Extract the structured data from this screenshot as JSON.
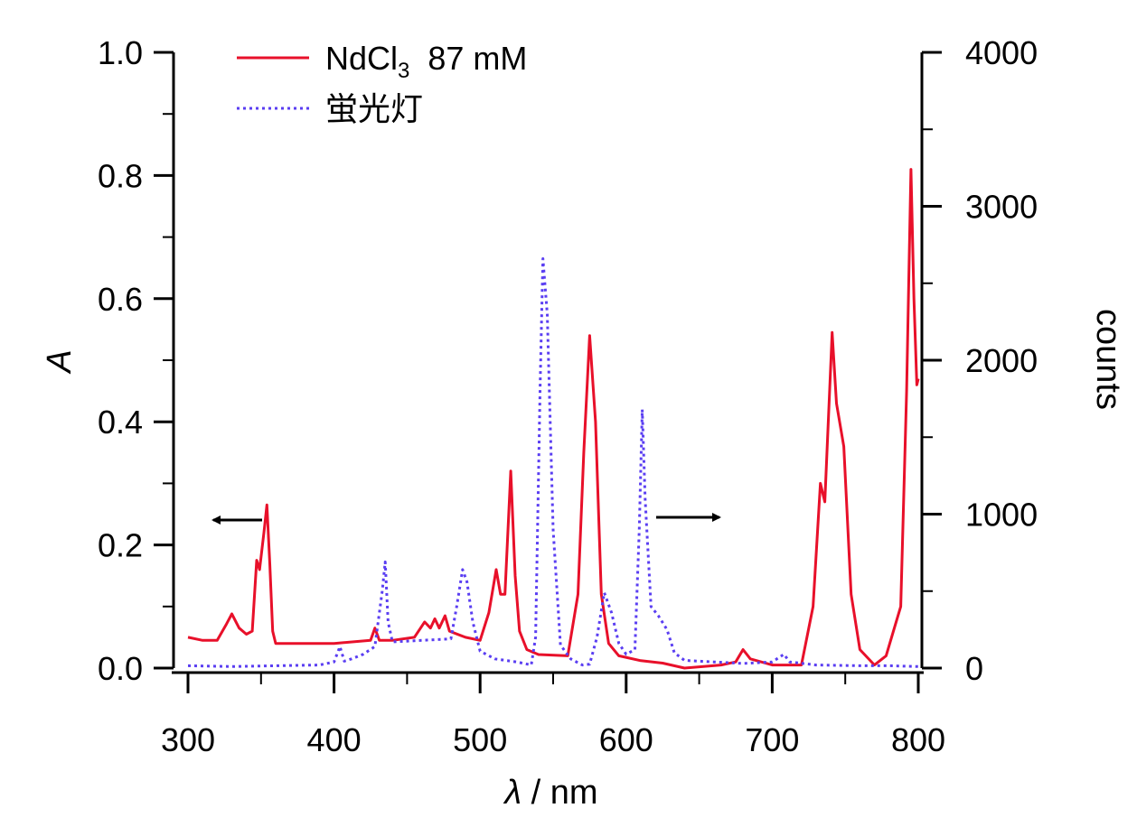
{
  "chart_data": {
    "type": "line",
    "xlabel_symbol": "λ",
    "xlabel_unit": " / nm",
    "ylabel_left": "A",
    "ylabel_right": "counts",
    "xlim": [
      300,
      800
    ],
    "ylim_left": [
      0,
      1.0
    ],
    "ylim_right": [
      0,
      4000
    ],
    "x_ticks": [
      "300",
      "400",
      "500",
      "600",
      "700",
      "800"
    ],
    "y_left_ticks": [
      "0.0",
      "0.2",
      "0.4",
      "0.6",
      "0.8",
      "1.0"
    ],
    "y_right_ticks": [
      "0",
      "1000",
      "2000",
      "3000",
      "4000"
    ],
    "grid": false,
    "legend_position": "top-left",
    "series": [
      {
        "name": "NdCl",
        "name_sub": "3",
        "name_suffix": "  87 mM",
        "axis": "left",
        "color": "#e8102a",
        "style": "solid",
        "points": [
          [
            300,
            0.05
          ],
          [
            310,
            0.045
          ],
          [
            320,
            0.045
          ],
          [
            326,
            0.07
          ],
          [
            330,
            0.088
          ],
          [
            335,
            0.065
          ],
          [
            340,
            0.055
          ],
          [
            344,
            0.06
          ],
          [
            347,
            0.175
          ],
          [
            349,
            0.16
          ],
          [
            352,
            0.22
          ],
          [
            354,
            0.265
          ],
          [
            356,
            0.17
          ],
          [
            358,
            0.06
          ],
          [
            360,
            0.04
          ],
          [
            380,
            0.04
          ],
          [
            400,
            0.04
          ],
          [
            425,
            0.045
          ],
          [
            428,
            0.065
          ],
          [
            431,
            0.045
          ],
          [
            440,
            0.045
          ],
          [
            455,
            0.05
          ],
          [
            462,
            0.075
          ],
          [
            466,
            0.065
          ],
          [
            469,
            0.08
          ],
          [
            472,
            0.065
          ],
          [
            476,
            0.085
          ],
          [
            479,
            0.06
          ],
          [
            490,
            0.05
          ],
          [
            500,
            0.045
          ],
          [
            506,
            0.09
          ],
          [
            511,
            0.16
          ],
          [
            514,
            0.12
          ],
          [
            517,
            0.12
          ],
          [
            521,
            0.32
          ],
          [
            524,
            0.15
          ],
          [
            527,
            0.06
          ],
          [
            532,
            0.03
          ],
          [
            540,
            0.022
          ],
          [
            560,
            0.02
          ],
          [
            567,
            0.12
          ],
          [
            571,
            0.35
          ],
          [
            575,
            0.54
          ],
          [
            579,
            0.4
          ],
          [
            583,
            0.12
          ],
          [
            588,
            0.04
          ],
          [
            595,
            0.02
          ],
          [
            610,
            0.012
          ],
          [
            625,
            0.008
          ],
          [
            640,
            0.0
          ],
          [
            665,
            0.005
          ],
          [
            675,
            0.01
          ],
          [
            680,
            0.03
          ],
          [
            685,
            0.015
          ],
          [
            700,
            0.005
          ],
          [
            720,
            0.005
          ],
          [
            728,
            0.1
          ],
          [
            733,
            0.3
          ],
          [
            736,
            0.27
          ],
          [
            741,
            0.545
          ],
          [
            744,
            0.43
          ],
          [
            749,
            0.36
          ],
          [
            754,
            0.12
          ],
          [
            760,
            0.03
          ],
          [
            770,
            0.005
          ],
          [
            778,
            0.02
          ],
          [
            783,
            0.06
          ],
          [
            788,
            0.1
          ],
          [
            792,
            0.45
          ],
          [
            795,
            0.81
          ],
          [
            797,
            0.6
          ],
          [
            799,
            0.46
          ],
          [
            800,
            0.47
          ]
        ]
      },
      {
        "name": "蛍光灯",
        "axis": "right",
        "color": "#5a3ef2",
        "style": "dotted",
        "points": [
          [
            300,
            15
          ],
          [
            330,
            10
          ],
          [
            360,
            15
          ],
          [
            390,
            20
          ],
          [
            400,
            40
          ],
          [
            404,
            140
          ],
          [
            407,
            45
          ],
          [
            412,
            60
          ],
          [
            420,
            90
          ],
          [
            428,
            140
          ],
          [
            433,
            500
          ],
          [
            435,
            690
          ],
          [
            437,
            300
          ],
          [
            440,
            170
          ],
          [
            460,
            180
          ],
          [
            480,
            190
          ],
          [
            484,
            400
          ],
          [
            488,
            640
          ],
          [
            491,
            560
          ],
          [
            495,
            300
          ],
          [
            500,
            110
          ],
          [
            510,
            60
          ],
          [
            525,
            40
          ],
          [
            535,
            20
          ],
          [
            538,
            200
          ],
          [
            541,
            1800
          ],
          [
            543,
            2660
          ],
          [
            546,
            2300
          ],
          [
            550,
            900
          ],
          [
            555,
            150
          ],
          [
            562,
            60
          ],
          [
            570,
            20
          ],
          [
            575,
            25
          ],
          [
            580,
            200
          ],
          [
            585,
            490
          ],
          [
            590,
            360
          ],
          [
            595,
            160
          ],
          [
            600,
            90
          ],
          [
            606,
            120
          ],
          [
            609,
            900
          ],
          [
            611,
            1680
          ],
          [
            613,
            1100
          ],
          [
            617,
            400
          ],
          [
            622,
            340
          ],
          [
            628,
            250
          ],
          [
            633,
            100
          ],
          [
            640,
            50
          ],
          [
            660,
            40
          ],
          [
            680,
            30
          ],
          [
            700,
            40
          ],
          [
            708,
            90
          ],
          [
            712,
            40
          ],
          [
            730,
            20
          ],
          [
            760,
            15
          ],
          [
            780,
            15
          ],
          [
            800,
            10
          ]
        ]
      }
    ],
    "annotations": [
      {
        "type": "arrow",
        "direction": "left",
        "meaning": "left-axis series"
      },
      {
        "type": "arrow",
        "direction": "right",
        "meaning": "right-axis series"
      }
    ]
  }
}
